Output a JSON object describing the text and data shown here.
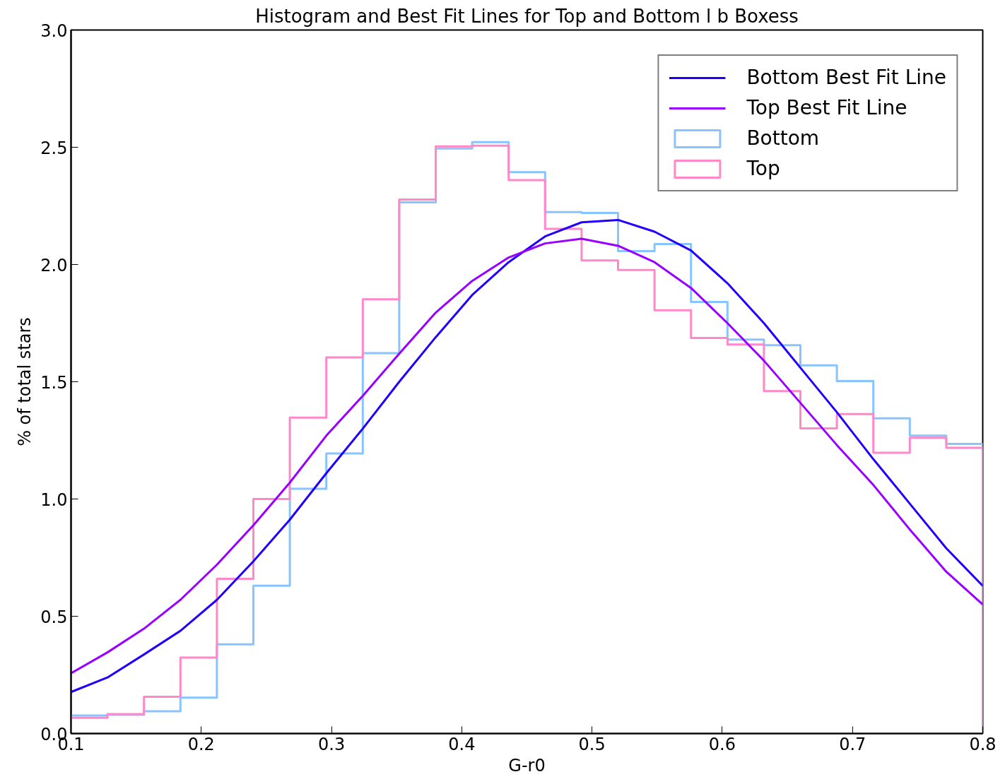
{
  "chart_data": {
    "type": "histogram",
    "title": "Histogram and Best Fit Lines for Top and Bottom l b Boxess",
    "xlabel": "G-r0",
    "ylabel": "% of total stars",
    "bins": [
      0.1,
      0.128,
      0.156,
      0.184,
      0.212,
      0.24,
      0.268,
      0.296,
      0.324,
      0.352,
      0.38,
      0.408,
      0.436,
      0.464,
      0.492,
      0.52,
      0.548,
      0.576,
      0.604,
      0.632,
      0.66,
      0.688,
      0.716,
      0.744,
      0.772,
      0.8
    ],
    "series": [
      {
        "name": "Bottom Best Fit Line",
        "type": "line",
        "color": "#2200ff",
        "x": [
          0.1,
          0.128,
          0.156,
          0.184,
          0.212,
          0.24,
          0.268,
          0.296,
          0.324,
          0.352,
          0.38,
          0.408,
          0.436,
          0.464,
          0.492,
          0.52,
          0.548,
          0.576,
          0.604,
          0.632,
          0.66,
          0.688,
          0.716,
          0.744,
          0.772,
          0.8
        ],
        "values": [
          0.177,
          0.239,
          0.337,
          0.438,
          0.57,
          0.734,
          0.912,
          1.11,
          1.3,
          1.5,
          1.69,
          1.87,
          2.01,
          2.12,
          2.18,
          2.19,
          2.14,
          2.06,
          1.92,
          1.75,
          1.56,
          1.37,
          1.17,
          0.98,
          0.79,
          0.63
        ]
      },
      {
        "name": "Top Best Fit Line",
        "type": "line",
        "color": "#9900ff",
        "x": [
          0.1,
          0.128,
          0.156,
          0.184,
          0.212,
          0.24,
          0.268,
          0.296,
          0.324,
          0.352,
          0.38,
          0.408,
          0.436,
          0.464,
          0.492,
          0.52,
          0.548,
          0.576,
          0.604,
          0.632,
          0.66,
          0.688,
          0.716,
          0.744,
          0.772,
          0.8
        ],
        "values": [
          0.257,
          0.346,
          0.447,
          0.57,
          0.72,
          0.888,
          1.07,
          1.27,
          1.44,
          1.62,
          1.795,
          1.93,
          2.03,
          2.09,
          2.11,
          2.08,
          2.01,
          1.9,
          1.75,
          1.59,
          1.41,
          1.23,
          1.06,
          0.87,
          0.69,
          0.55
        ]
      },
      {
        "name": "Bottom",
        "color": "#88c4ff",
        "values": [
          0.077,
          0.08,
          0.095,
          0.153,
          0.38,
          0.63,
          1.044,
          1.194,
          1.622,
          2.265,
          2.495,
          2.522,
          2.394,
          2.224,
          2.22,
          2.057,
          2.087,
          1.84,
          1.68,
          1.656,
          1.57,
          1.503,
          1.344,
          1.27,
          1.235
        ]
      },
      {
        "name": "Top",
        "color": "#ff88c8",
        "values": [
          0.067,
          0.083,
          0.157,
          0.324,
          0.66,
          1.0,
          1.347,
          1.604,
          1.852,
          2.277,
          2.504,
          2.507,
          2.36,
          2.152,
          2.017,
          1.977,
          1.805,
          1.687,
          1.659,
          1.46,
          1.301,
          1.362,
          1.197,
          1.261,
          1.218
        ]
      }
    ],
    "xlim": [
      0.1,
      0.8
    ],
    "ylim": [
      0.0,
      3.0
    ],
    "xticks": [
      0.1,
      0.2,
      0.3,
      0.4,
      0.5,
      0.6,
      0.7,
      0.8
    ],
    "yticks": [
      {
        "value": 0.0,
        "label": "0.0"
      },
      {
        "value": 0.5,
        "label": "0.5"
      },
      {
        "value": 1.0,
        "label": "1.0"
      },
      {
        "value": 1.5,
        "label": "1.5"
      },
      {
        "value": 2.0,
        "label": "2.0"
      },
      {
        "value": 2.5,
        "label": "2.5"
      },
      {
        "value": 3.0,
        "label": "3.0"
      }
    ],
    "grid": false,
    "legend": "top right"
  }
}
